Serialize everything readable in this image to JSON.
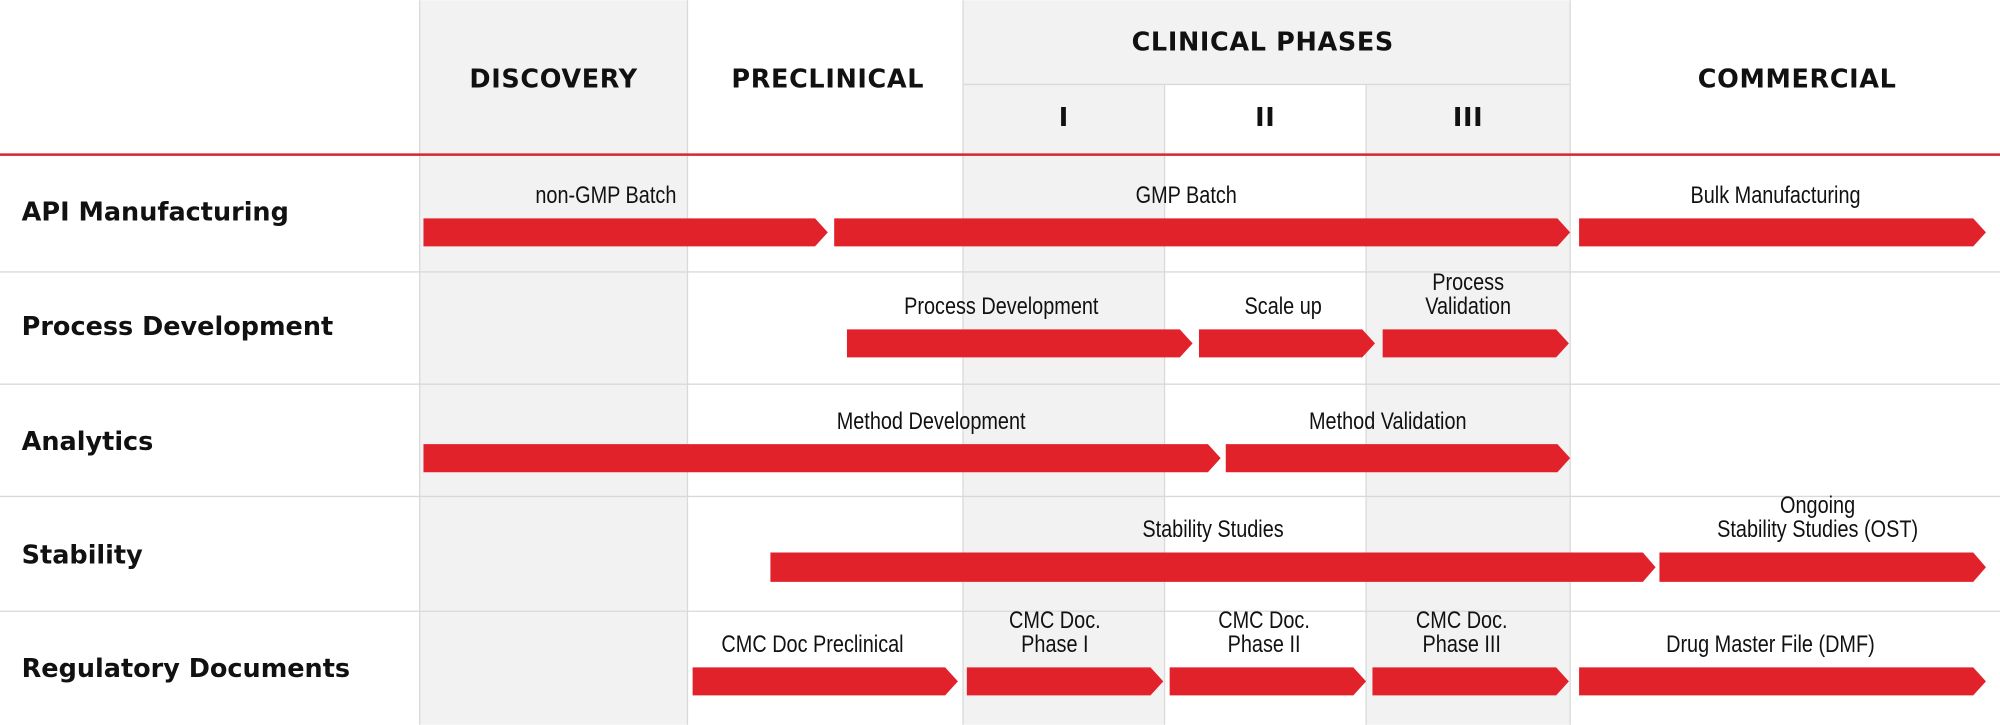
{
  "header": {
    "columns": [
      "DISCOVERY",
      "PRECLINICAL",
      "CLINICAL PHASES",
      "COMMERCIAL"
    ],
    "phases": [
      "I",
      "II",
      "III"
    ]
  },
  "rows": [
    {
      "label": "API Manufacturing",
      "bars": [
        {
          "lines": [
            "non-GMP Batch"
          ]
        },
        {
          "lines": [
            "GMP Batch"
          ]
        },
        {
          "lines": [
            "Bulk Manufacturing"
          ]
        }
      ]
    },
    {
      "label": "Process Development",
      "bars": [
        {
          "lines": [
            "Process Development"
          ]
        },
        {
          "lines": [
            "Scale up"
          ]
        },
        {
          "lines": [
            "Process",
            "Validation"
          ]
        }
      ]
    },
    {
      "label": "Analytics",
      "bars": [
        {
          "lines": [
            "Method Development"
          ]
        },
        {
          "lines": [
            "Method Validation"
          ]
        }
      ]
    },
    {
      "label": "Stability",
      "bars": [
        {
          "lines": [
            "Stability Studies"
          ]
        },
        {
          "lines": [
            "Ongoing",
            "Stability Studies (OST)"
          ]
        }
      ]
    },
    {
      "label": "Regulatory Documents",
      "bars": [
        {
          "lines": [
            "CMC Doc Preclinical"
          ]
        },
        {
          "lines": [
            "CMC Doc.",
            "Phase I"
          ]
        },
        {
          "lines": [
            "CMC Doc.",
            "Phase II"
          ]
        },
        {
          "lines": [
            "CMC Doc.",
            "Phase III"
          ]
        },
        {
          "lines": [
            "Drug Master File (DMF)"
          ]
        }
      ]
    }
  ]
}
